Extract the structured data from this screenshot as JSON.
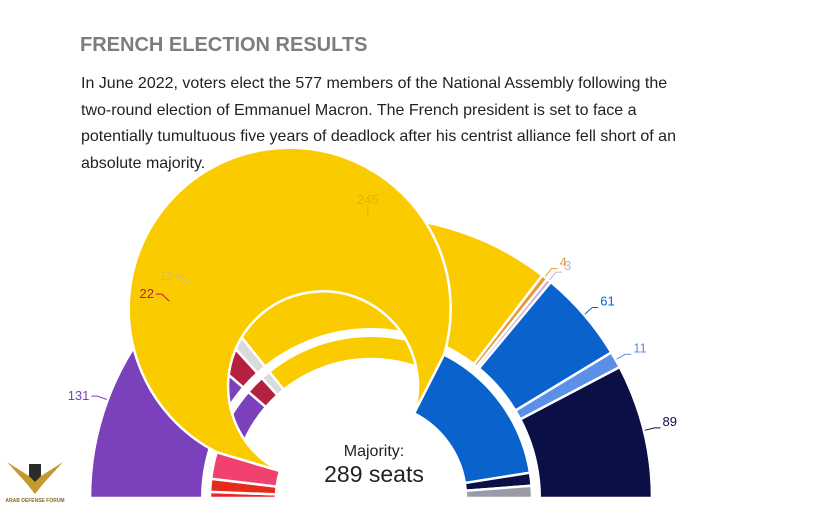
{
  "page": {
    "title": "FRENCH ELECTION RESULTS",
    "description": "In June 2022, voters elect the 577 members of the National Assembly following the two-round election of Emmanuel Macron. The French president is set to face a potentially tumultuous five years of deadlock after his centrist alliance fell short of an absolute majority."
  },
  "chart_data": {
    "type": "parliament-hemicycle",
    "title": "FRENCH ELECTION RESULTS",
    "total_seats": 577,
    "majority": {
      "label": "Majority:",
      "seats_text": "289 seats",
      "value": 289
    },
    "outer_ring": [
      {
        "value": 131,
        "color": "#7B40BC",
        "label": "131"
      },
      {
        "value": 22,
        "color": "#B4213F",
        "label": "22"
      },
      {
        "value": 11,
        "color": "#DADADA",
        "label": "11",
        "label_color": "#B8B8B8"
      },
      {
        "value": 245,
        "color": "#FACC00",
        "label": "245",
        "label_color": "#E2B400"
      },
      {
        "value": 4,
        "color": "#E49A3A",
        "label": "4",
        "label_color": "#E49A3A"
      },
      {
        "value": 3,
        "color": "#C9A9DA",
        "label": "3",
        "label_color": "#C9A9DA"
      },
      {
        "value": 61,
        "color": "#0A62CC",
        "label": "61"
      },
      {
        "value": 11,
        "color": "#5B8FE8",
        "label": "11"
      },
      {
        "value": 89,
        "color": "#0A0F45",
        "label": "89"
      }
    ],
    "inner_ring": [
      {
        "value": 7,
        "color": "#E8252B"
      },
      {
        "value": 15,
        "color": "#E52B1A"
      },
      {
        "value": 31,
        "color": "#F0416F"
      },
      {
        "value": 322,
        "color": "#FACC00"
      },
      {
        "value": 173,
        "color": "#0A62CC"
      },
      {
        "value": 15,
        "color": "#0A0F45"
      },
      {
        "value": 14,
        "color": "#9A9AA8"
      }
    ]
  },
  "watermark": {
    "text": "ARAB DEFENSE FORUM"
  }
}
